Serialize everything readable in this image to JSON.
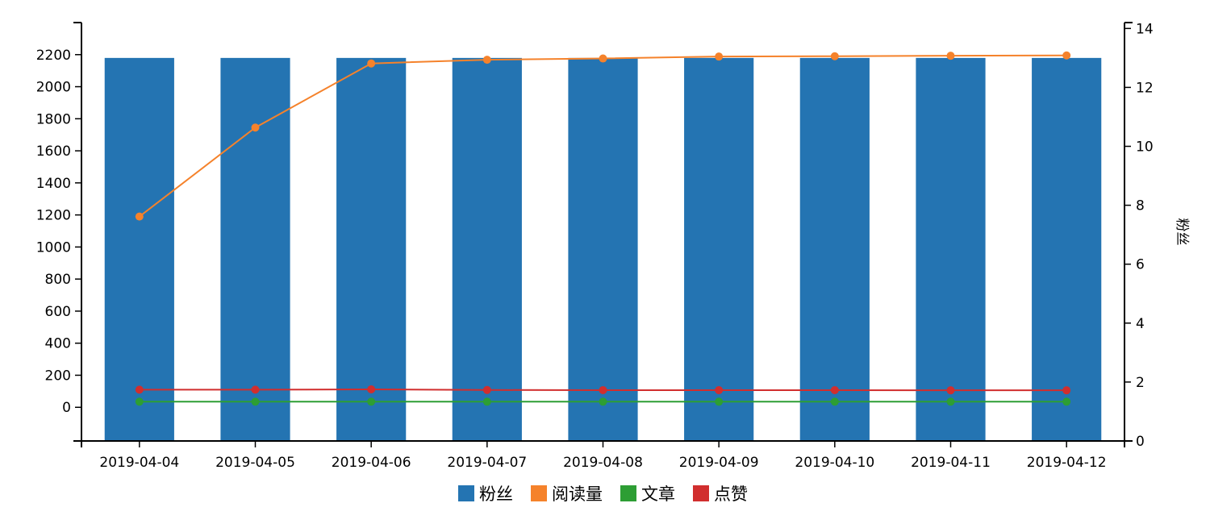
{
  "chart_data": {
    "type": "bar",
    "categories": [
      "2019-04-04",
      "2019-04-05",
      "2019-04-06",
      "2019-04-07",
      "2019-04-08",
      "2019-04-09",
      "2019-04-10",
      "2019-04-11",
      "2019-04-12"
    ],
    "series": [
      {
        "name": "粉丝",
        "type": "bar",
        "axis": "right",
        "color": "#2474b2",
        "values": [
          13,
          13,
          13,
          13,
          13,
          13,
          13,
          13,
          13
        ]
      },
      {
        "name": "阅读量",
        "type": "line",
        "axis": "left",
        "color": "#f5822b",
        "values": [
          1190,
          1745,
          2145,
          2168,
          2176,
          2188,
          2190,
          2193,
          2195
        ]
      },
      {
        "name": "文章",
        "type": "line",
        "axis": "left",
        "color": "#2d9e34",
        "values": [
          35,
          35,
          35,
          35,
          35,
          35,
          35,
          35,
          35
        ]
      },
      {
        "name": "点赞",
        "type": "line",
        "axis": "left",
        "color": "#d12e2e",
        "values": [
          110,
          110,
          112,
          108,
          107,
          107,
          107,
          106,
          106
        ]
      }
    ],
    "y_left": {
      "ylim": [
        -210,
        2400
      ],
      "ticks": [
        "0",
        "200",
        "400",
        "600",
        "800",
        "1000",
        "1200",
        "1400",
        "1600",
        "1800",
        "2000",
        "2200"
      ]
    },
    "y_right": {
      "label": "粉丝",
      "ylim": [
        0,
        14.2
      ],
      "ticks": [
        "0",
        "2",
        "4",
        "6",
        "8",
        "10",
        "12",
        "14"
      ]
    },
    "legend": {
      "placement": "bottom-center",
      "items": [
        "粉丝",
        "阅读量",
        "文章",
        "点赞"
      ]
    },
    "grid": false
  }
}
